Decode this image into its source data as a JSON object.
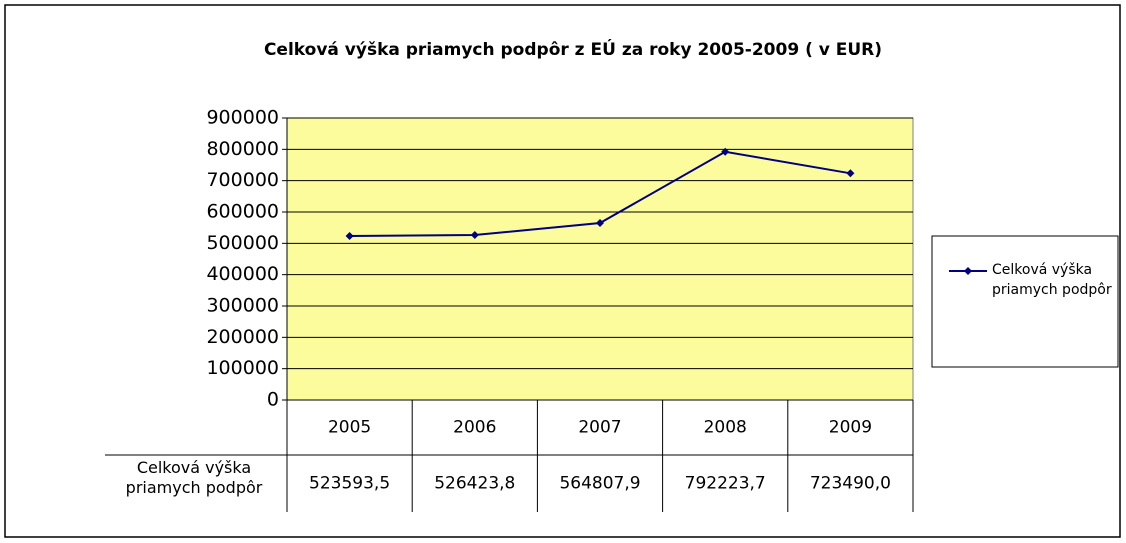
{
  "chart_data": {
    "type": "line",
    "title": "Celková výška priamych podpôr z EÚ za roky 2005-2009 ( v EUR)",
    "categories": [
      "2005",
      "2006",
      "2007",
      "2008",
      "2009"
    ],
    "series": [
      {
        "name": "Celková výška priamych podpôr",
        "color": "#000080",
        "values": [
          523593.5,
          526423.8,
          564807.9,
          792223.7,
          723490.0
        ],
        "value_labels": [
          "523593,5",
          "526423,8",
          "564807,9",
          "792223,7",
          "723490,0"
        ]
      }
    ],
    "ylim": [
      0,
      900000
    ],
    "yticks": [
      0,
      100000,
      200000,
      300000,
      400000,
      500000,
      600000,
      700000,
      800000,
      900000
    ],
    "grid": true,
    "plot_background": "#fcfc9c",
    "legend": "right"
  }
}
